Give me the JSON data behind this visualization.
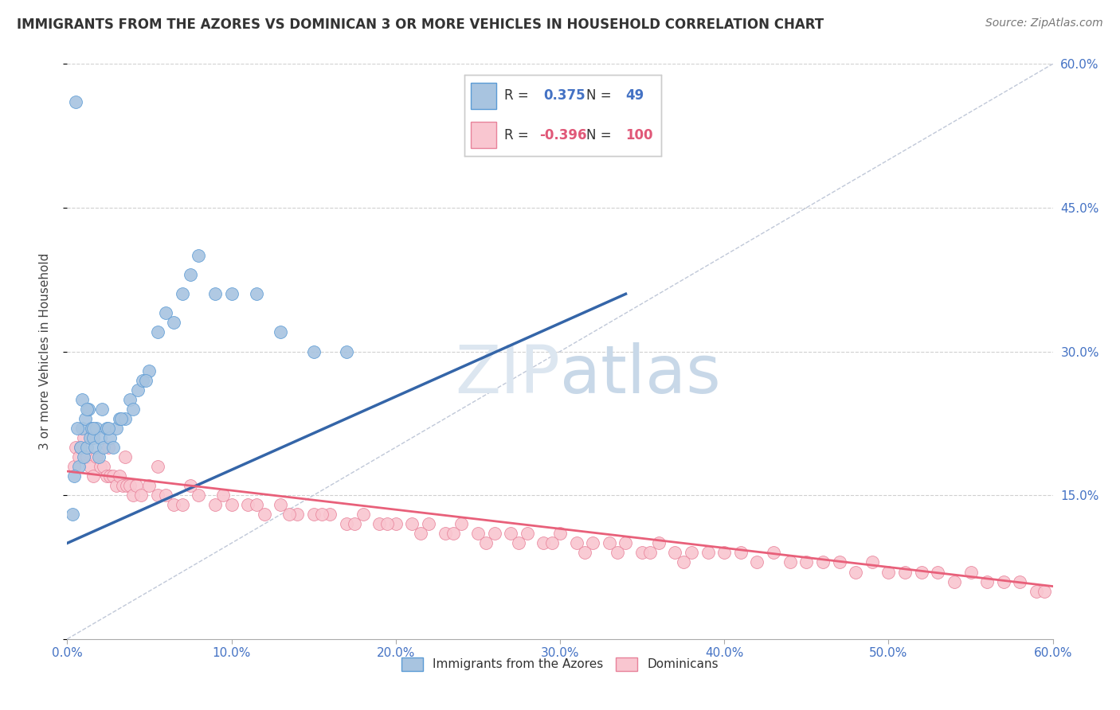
{
  "title": "IMMIGRANTS FROM THE AZORES VS DOMINICAN 3 OR MORE VEHICLES IN HOUSEHOLD CORRELATION CHART",
  "source": "Source: ZipAtlas.com",
  "ylabel": "3 or more Vehicles in Household",
  "legend_label1": "Immigrants from the Azores",
  "legend_label2": "Dominicans",
  "R1": 0.375,
  "N1": 49,
  "R2": -0.396,
  "N2": 100,
  "blue_dot_color": "#a8c4e0",
  "blue_dot_edge": "#5b9bd5",
  "pink_dot_color": "#f9c6d0",
  "pink_dot_edge": "#e8829a",
  "blue_line_color": "#3465a8",
  "pink_line_color": "#e8607a",
  "text_blue": "#4472c4",
  "text_pink": "#e05878",
  "grid_color": "#d0d0d0",
  "diag_color": "#c0c8d8",
  "xlim": [
    0.0,
    0.6
  ],
  "ylim": [
    0.0,
    0.6
  ],
  "ytick_values": [
    0.0,
    0.15,
    0.3,
    0.45,
    0.6
  ],
  "xtick_values": [
    0.0,
    0.1,
    0.2,
    0.3,
    0.4,
    0.5,
    0.6
  ],
  "azores_x": [
    0.003,
    0.005,
    0.007,
    0.008,
    0.009,
    0.01,
    0.011,
    0.012,
    0.013,
    0.014,
    0.015,
    0.016,
    0.017,
    0.018,
    0.019,
    0.02,
    0.022,
    0.024,
    0.026,
    0.028,
    0.03,
    0.032,
    0.035,
    0.038,
    0.04,
    0.043,
    0.046,
    0.05,
    0.055,
    0.06,
    0.065,
    0.07,
    0.075,
    0.08,
    0.09,
    0.1,
    0.115,
    0.13,
    0.15,
    0.17,
    0.004,
    0.006,
    0.009,
    0.012,
    0.016,
    0.021,
    0.025,
    0.033,
    0.048
  ],
  "azores_y": [
    0.13,
    0.56,
    0.18,
    0.2,
    0.22,
    0.19,
    0.23,
    0.2,
    0.24,
    0.21,
    0.22,
    0.21,
    0.2,
    0.22,
    0.19,
    0.21,
    0.2,
    0.22,
    0.21,
    0.2,
    0.22,
    0.23,
    0.23,
    0.25,
    0.24,
    0.26,
    0.27,
    0.28,
    0.32,
    0.34,
    0.33,
    0.36,
    0.38,
    0.4,
    0.36,
    0.36,
    0.36,
    0.32,
    0.3,
    0.3,
    0.17,
    0.22,
    0.25,
    0.24,
    0.22,
    0.24,
    0.22,
    0.23,
    0.27
  ],
  "dominican_x": [
    0.004,
    0.005,
    0.007,
    0.008,
    0.01,
    0.012,
    0.014,
    0.016,
    0.018,
    0.02,
    0.022,
    0.024,
    0.026,
    0.028,
    0.03,
    0.032,
    0.034,
    0.036,
    0.038,
    0.04,
    0.042,
    0.045,
    0.05,
    0.055,
    0.06,
    0.065,
    0.07,
    0.08,
    0.09,
    0.1,
    0.11,
    0.12,
    0.13,
    0.14,
    0.15,
    0.16,
    0.17,
    0.18,
    0.19,
    0.2,
    0.21,
    0.22,
    0.23,
    0.24,
    0.25,
    0.26,
    0.27,
    0.28,
    0.29,
    0.3,
    0.31,
    0.32,
    0.33,
    0.34,
    0.35,
    0.36,
    0.37,
    0.38,
    0.39,
    0.4,
    0.41,
    0.42,
    0.43,
    0.44,
    0.45,
    0.46,
    0.47,
    0.48,
    0.49,
    0.5,
    0.51,
    0.52,
    0.53,
    0.54,
    0.55,
    0.56,
    0.57,
    0.58,
    0.59,
    0.595,
    0.015,
    0.025,
    0.035,
    0.055,
    0.075,
    0.095,
    0.115,
    0.135,
    0.155,
    0.175,
    0.195,
    0.215,
    0.235,
    0.255,
    0.275,
    0.295,
    0.315,
    0.335,
    0.355,
    0.375
  ],
  "dominican_y": [
    0.18,
    0.2,
    0.19,
    0.2,
    0.21,
    0.19,
    0.18,
    0.17,
    0.19,
    0.18,
    0.18,
    0.17,
    0.17,
    0.17,
    0.16,
    0.17,
    0.16,
    0.16,
    0.16,
    0.15,
    0.16,
    0.15,
    0.16,
    0.15,
    0.15,
    0.14,
    0.14,
    0.15,
    0.14,
    0.14,
    0.14,
    0.13,
    0.14,
    0.13,
    0.13,
    0.13,
    0.12,
    0.13,
    0.12,
    0.12,
    0.12,
    0.12,
    0.11,
    0.12,
    0.11,
    0.11,
    0.11,
    0.11,
    0.1,
    0.11,
    0.1,
    0.1,
    0.1,
    0.1,
    0.09,
    0.1,
    0.09,
    0.09,
    0.09,
    0.09,
    0.09,
    0.08,
    0.09,
    0.08,
    0.08,
    0.08,
    0.08,
    0.07,
    0.08,
    0.07,
    0.07,
    0.07,
    0.07,
    0.06,
    0.07,
    0.06,
    0.06,
    0.06,
    0.05,
    0.05,
    0.22,
    0.2,
    0.19,
    0.18,
    0.16,
    0.15,
    0.14,
    0.13,
    0.13,
    0.12,
    0.12,
    0.11,
    0.11,
    0.1,
    0.1,
    0.1,
    0.09,
    0.09,
    0.09,
    0.08
  ],
  "blue_trend_x": [
    0.0,
    0.34
  ],
  "blue_trend_y": [
    0.1,
    0.36
  ],
  "pink_trend_x": [
    0.0,
    0.6
  ],
  "pink_trend_y": [
    0.175,
    0.055
  ]
}
